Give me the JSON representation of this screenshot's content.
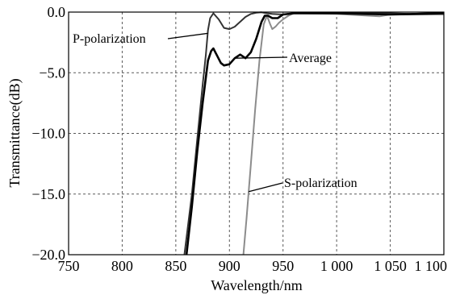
{
  "chart_data": {
    "type": "line",
    "title": "",
    "xlabel": "Wavelength/nm",
    "ylabel": "Transmittance(dB)",
    "xlim": [
      750,
      1100
    ],
    "ylim": [
      -20,
      0
    ],
    "grid": true,
    "x_ticks": [
      {
        "value": 750,
        "label": "750"
      },
      {
        "value": 800,
        "label": "800"
      },
      {
        "value": 850,
        "label": "850"
      },
      {
        "value": 900,
        "label": "900"
      },
      {
        "value": 950,
        "label": "950"
      },
      {
        "value": 1000,
        "label": "1 000"
      },
      {
        "value": 1050,
        "label": "1 050"
      },
      {
        "value": 1100,
        "label": "1 100"
      }
    ],
    "y_ticks": [
      {
        "value": 0,
        "label": "0.0"
      },
      {
        "value": -5,
        "label": "−5.0"
      },
      {
        "value": -10,
        "label": "−10.0"
      },
      {
        "value": -15,
        "label": "−15.0"
      },
      {
        "value": -20,
        "label": "−20.0"
      }
    ],
    "series": [
      {
        "name": "P-polarization",
        "color": "#333333",
        "x": [
          858,
          865,
          870,
          875,
          878,
          880,
          882,
          885,
          890,
          895,
          900,
          905,
          910,
          915,
          920,
          925,
          930,
          935,
          940,
          950,
          960,
          1000,
          1030,
          1050,
          1070,
          1100
        ],
        "y": [
          -20,
          -15,
          -10.5,
          -6,
          -3.5,
          -1.5,
          -0.5,
          -0.1,
          -0.6,
          -1.3,
          -1.4,
          -1.2,
          -0.8,
          -0.4,
          -0.15,
          -0.05,
          -0.02,
          -0.1,
          -0.15,
          -0.2,
          -0.1,
          -0.1,
          -0.1,
          -0.1,
          -0.15,
          -0.05
        ]
      },
      {
        "name": "S-polarization",
        "color": "#8c8c8c",
        "x": [
          913,
          916,
          920,
          924,
          928,
          932,
          935,
          938,
          940,
          943,
          946,
          950,
          955,
          960,
          1000,
          1030,
          1040,
          1050,
          1070,
          1100
        ],
        "y": [
          -20,
          -17,
          -12.5,
          -8,
          -4,
          -1,
          -0.3,
          -1,
          -1.4,
          -1.2,
          -0.9,
          -0.6,
          -0.3,
          -0.1,
          -0.15,
          -0.3,
          -0.35,
          -0.2,
          -0.2,
          -0.2
        ]
      },
      {
        "name": "Average",
        "color": "#000000",
        "x": [
          860,
          865,
          870,
          875,
          880,
          883,
          885,
          888,
          892,
          895,
          900,
          905,
          910,
          915,
          920,
          925,
          930,
          933,
          936,
          940,
          945,
          950,
          960,
          1000,
          1050,
          1100
        ],
        "y": [
          -20,
          -16,
          -11.5,
          -7.5,
          -4,
          -3.2,
          -3.0,
          -3.5,
          -4.2,
          -4.4,
          -4.3,
          -3.8,
          -3.5,
          -3.8,
          -3.3,
          -2.2,
          -0.8,
          -0.3,
          -0.3,
          -0.5,
          -0.5,
          -0.2,
          -0.1,
          -0.1,
          -0.2,
          -0.1
        ]
      }
    ],
    "annotations": [
      {
        "text": "P-polarization",
        "series": "P-polarization"
      },
      {
        "text": "Average",
        "series": "Average"
      },
      {
        "text": "S-polarization",
        "series": "S-polarization"
      }
    ]
  }
}
